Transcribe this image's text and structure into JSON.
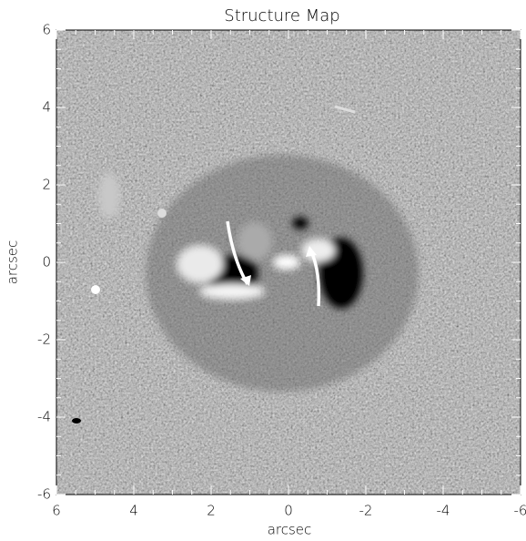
{
  "chart_data": {
    "type": "image",
    "title": "Structure Map",
    "x_label": "arcsec",
    "y_label": "arcsec",
    "xlim": [
      6,
      -6
    ],
    "ylim": [
      -6,
      6
    ],
    "xticks": [
      6,
      4,
      2,
      0,
      -2,
      -4,
      -6
    ],
    "yticks": [
      -6,
      -4,
      -2,
      0,
      2,
      4,
      6
    ]
  }
}
